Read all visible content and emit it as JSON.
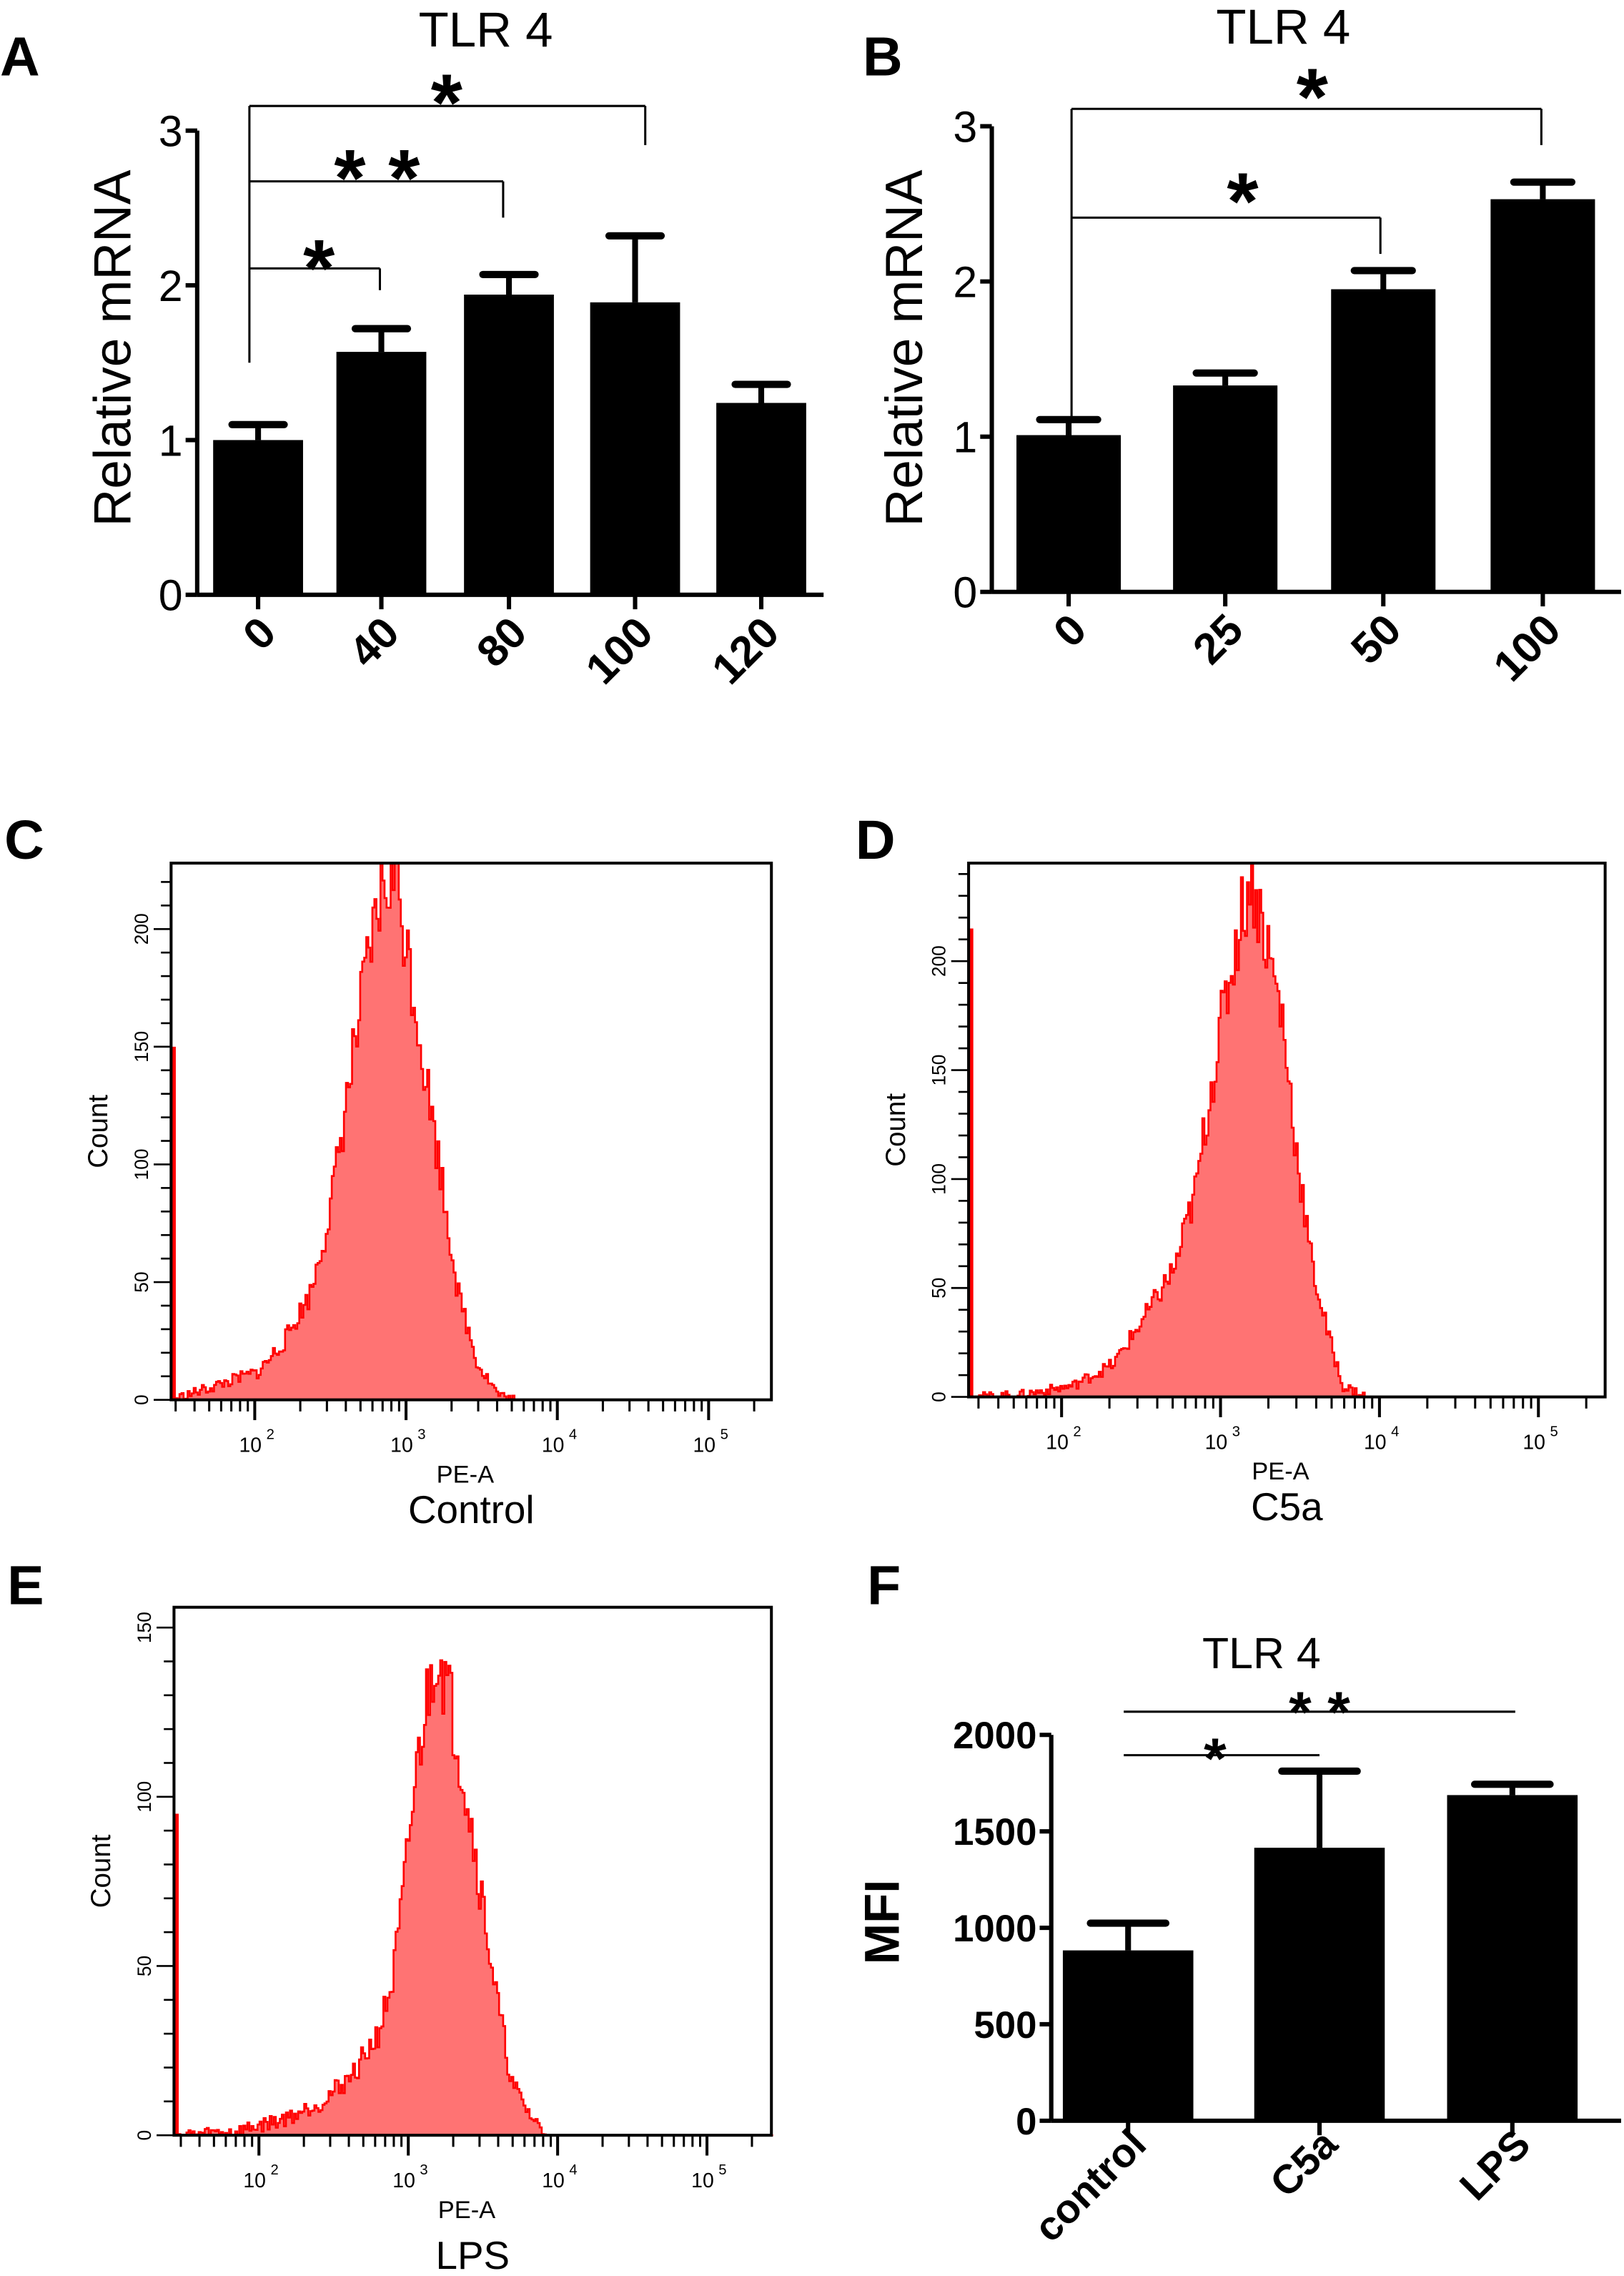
{
  "panel_labels": [
    "A",
    "B",
    "C",
    "D",
    "E",
    "F"
  ],
  "chart_data": [
    {
      "panel": "A",
      "type": "bar",
      "title": "TLR 4",
      "ylabel": "Relative mRNA",
      "categories": [
        "0",
        "40",
        "80",
        "100",
        "120"
      ],
      "values": [
        1.0,
        1.57,
        1.94,
        1.89,
        1.24
      ],
      "error_upper": [
        0.1,
        0.15,
        0.13,
        0.43,
        0.12
      ],
      "ylim": [
        0,
        3
      ],
      "yticks": [
        "0",
        "1",
        "2",
        "3"
      ],
      "significance": [
        {
          "from": "0",
          "to": "100",
          "label": "*"
        },
        {
          "from": "0",
          "to": "80",
          "label": "* *"
        },
        {
          "from": "0",
          "to": "40",
          "label": "*"
        }
      ],
      "bar_color": "#000000"
    },
    {
      "panel": "B",
      "type": "bar",
      "title": "TLR 4",
      "ylabel": "Relative mRNA",
      "categories": [
        "0",
        "25",
        "50",
        "100"
      ],
      "values": [
        1.01,
        1.33,
        1.95,
        2.53
      ],
      "error_upper": [
        0.1,
        0.08,
        0.12,
        0.11
      ],
      "ylim": [
        0,
        3
      ],
      "yticks": [
        "0",
        "1",
        "2",
        "3"
      ],
      "significance": [
        {
          "from": "0",
          "to": "100",
          "label": "*"
        },
        {
          "from": "0",
          "to": "50",
          "label": "*"
        }
      ],
      "bar_color": "#000000"
    },
    {
      "panel": "C",
      "type": "histogram",
      "caption": "Control",
      "xlabel": "PE-A",
      "ylabel": "Count",
      "xscale": "log",
      "xlim": [
        28,
        260000
      ],
      "ylim": [
        0,
        228
      ],
      "yticks": [
        "0",
        "50",
        "100",
        "150",
        "200"
      ],
      "xticks": [
        {
          "base": "10",
          "exp": "2"
        },
        {
          "base": "10",
          "exp": "3"
        },
        {
          "base": "10",
          "exp": "4"
        },
        {
          "base": "10",
          "exp": "5"
        }
      ],
      "x": [
        49,
        105,
        155,
        230,
        310,
        427,
        537,
        676,
        830,
        1070,
        1350,
        1730,
        2180,
        2950,
        4070,
        5100
      ],
      "counts": [
        5,
        12,
        25,
        45,
        80,
        140,
        180,
        215,
        225,
        180,
        135,
        90,
        45,
        15,
        2,
        0
      ],
      "axis_edge_count": 150,
      "stroke_color": "#ff0000",
      "fill_color": "#ff7373"
    },
    {
      "panel": "D",
      "type": "histogram",
      "caption": "C5a",
      "xlabel": "PE-A",
      "ylabel": "Count",
      "xscale": "log",
      "xlim": [
        26,
        263000
      ],
      "ylim": [
        0,
        245
      ],
      "yticks": [
        "0",
        "50",
        "100",
        "150",
        "200"
      ],
      "xticks": [
        {
          "base": "10",
          "exp": "2"
        },
        {
          "base": "10",
          "exp": "3"
        },
        {
          "base": "10",
          "exp": "4"
        },
        {
          "base": "10",
          "exp": "5"
        }
      ],
      "x": [
        54,
        115,
        209,
        353,
        513,
        690,
        850,
        1050,
        1320,
        1540,
        1910,
        2400,
        3000,
        3720,
        4640,
        5780,
        8300
      ],
      "counts": [
        1,
        5,
        15,
        40,
        60,
        95,
        140,
        180,
        220,
        240,
        210,
        175,
        110,
        60,
        30,
        5,
        0
      ],
      "axis_edge_count": 215,
      "stroke_color": "#ff0000",
      "fill_color": "#ff7373"
    },
    {
      "panel": "E",
      "type": "histogram",
      "caption": "LPS",
      "xlabel": "PE-A",
      "ylabel": "Count",
      "xscale": "log",
      "xlim": [
        27,
        270000
      ],
      "ylim": [
        0,
        156
      ],
      "yticks": [
        "0",
        "50",
        "100",
        "150"
      ],
      "xticks": [
        {
          "base": "10",
          "exp": "2"
        },
        {
          "base": "10",
          "exp": "3"
        },
        {
          "base": "10",
          "exp": "4"
        },
        {
          "base": "10",
          "exp": "5"
        }
      ],
      "x": [
        69,
        150,
        263,
        420,
        620,
        770,
        910,
        1040,
        1220,
        1540,
        1940,
        2440,
        3070,
        3870,
        4880,
        6650,
        8450
      ],
      "counts": [
        1,
        5,
        10,
        18,
        30,
        45,
        70,
        95,
        120,
        145,
        125,
        100,
        70,
        40,
        15,
        5,
        0
      ],
      "axis_edge_count": 95,
      "stroke_color": "#ff0000",
      "fill_color": "#ff7373"
    },
    {
      "panel": "F",
      "type": "bar",
      "title": "TLR 4",
      "ylabel": "MFI",
      "categories": [
        "control",
        "C5a",
        "LPS"
      ],
      "values": [
        883,
        1415,
        1688
      ],
      "error_upper": [
        141,
        397,
        56
      ],
      "ylim": [
        0,
        2000
      ],
      "yticks": [
        "0",
        "500",
        "1000",
        "1500",
        "2000"
      ],
      "significance": [
        {
          "from": "control",
          "to": "LPS",
          "label": "* *"
        },
        {
          "from": "control",
          "to": "C5a",
          "label": "*"
        }
      ],
      "bar_color": "#000000"
    }
  ]
}
